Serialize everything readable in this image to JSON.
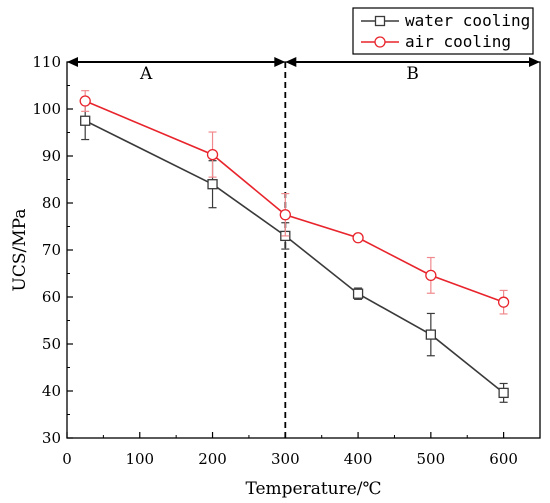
{
  "chart_data": {
    "type": "line",
    "title": "",
    "xlabel": "Temperature/℃",
    "ylabel": "UCS/MPa",
    "xlim": [
      0,
      650
    ],
    "ylim": [
      30,
      110
    ],
    "xticks": [
      0,
      100,
      200,
      300,
      400,
      500,
      600
    ],
    "yticks": [
      30,
      40,
      50,
      60,
      70,
      80,
      90,
      100,
      110
    ],
    "grid": false,
    "legend_position": "top-right",
    "x": [
      25,
      200,
      300,
      400,
      500,
      600
    ],
    "series": [
      {
        "name": "water cooling",
        "color": "#3a3a3a",
        "marker": "square",
        "values": [
          97.5,
          84,
          73,
          60.7,
          52,
          39.6
        ],
        "error": [
          4,
          5,
          2.8,
          1.2,
          4.5,
          2
        ]
      },
      {
        "name": "air cooling",
        "color": "#e8242c",
        "marker": "circle",
        "values": [
          101.7,
          90.3,
          77.5,
          72.6,
          64.6,
          58.9
        ],
        "error": [
          2.2,
          4.8,
          4.5,
          0.6,
          3.8,
          2.5
        ]
      }
    ],
    "annotations": {
      "divider_x": 300,
      "regions": [
        {
          "label": "A",
          "from": 0,
          "to": 300
        },
        {
          "label": "B",
          "from": 300,
          "to": 650
        }
      ]
    }
  }
}
